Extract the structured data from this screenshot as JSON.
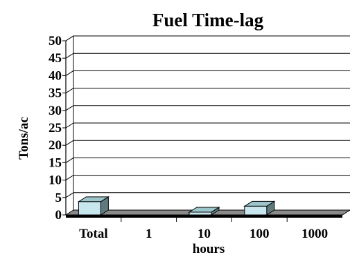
{
  "chart_data": {
    "type": "bar",
    "title": "Fuel Time-lag",
    "xlabel": "hours",
    "ylabel": "Tons/ac",
    "categories": [
      "Total",
      "1",
      "10",
      "100",
      "1000"
    ],
    "values": [
      3.8,
      0,
      0.8,
      2.5,
      0
    ],
    "ylim": [
      0,
      50
    ],
    "yticks": [
      0,
      5,
      10,
      15,
      20,
      25,
      30,
      35,
      40,
      45,
      50
    ],
    "grid": true,
    "legend": "none",
    "style": "3d",
    "colors": {
      "bar_front": "#c8e6ee",
      "bar_top": "#9cc6cc",
      "bar_side": "#5f7a7d",
      "floor": "#8a8a8a",
      "gridline": "#000000"
    }
  }
}
